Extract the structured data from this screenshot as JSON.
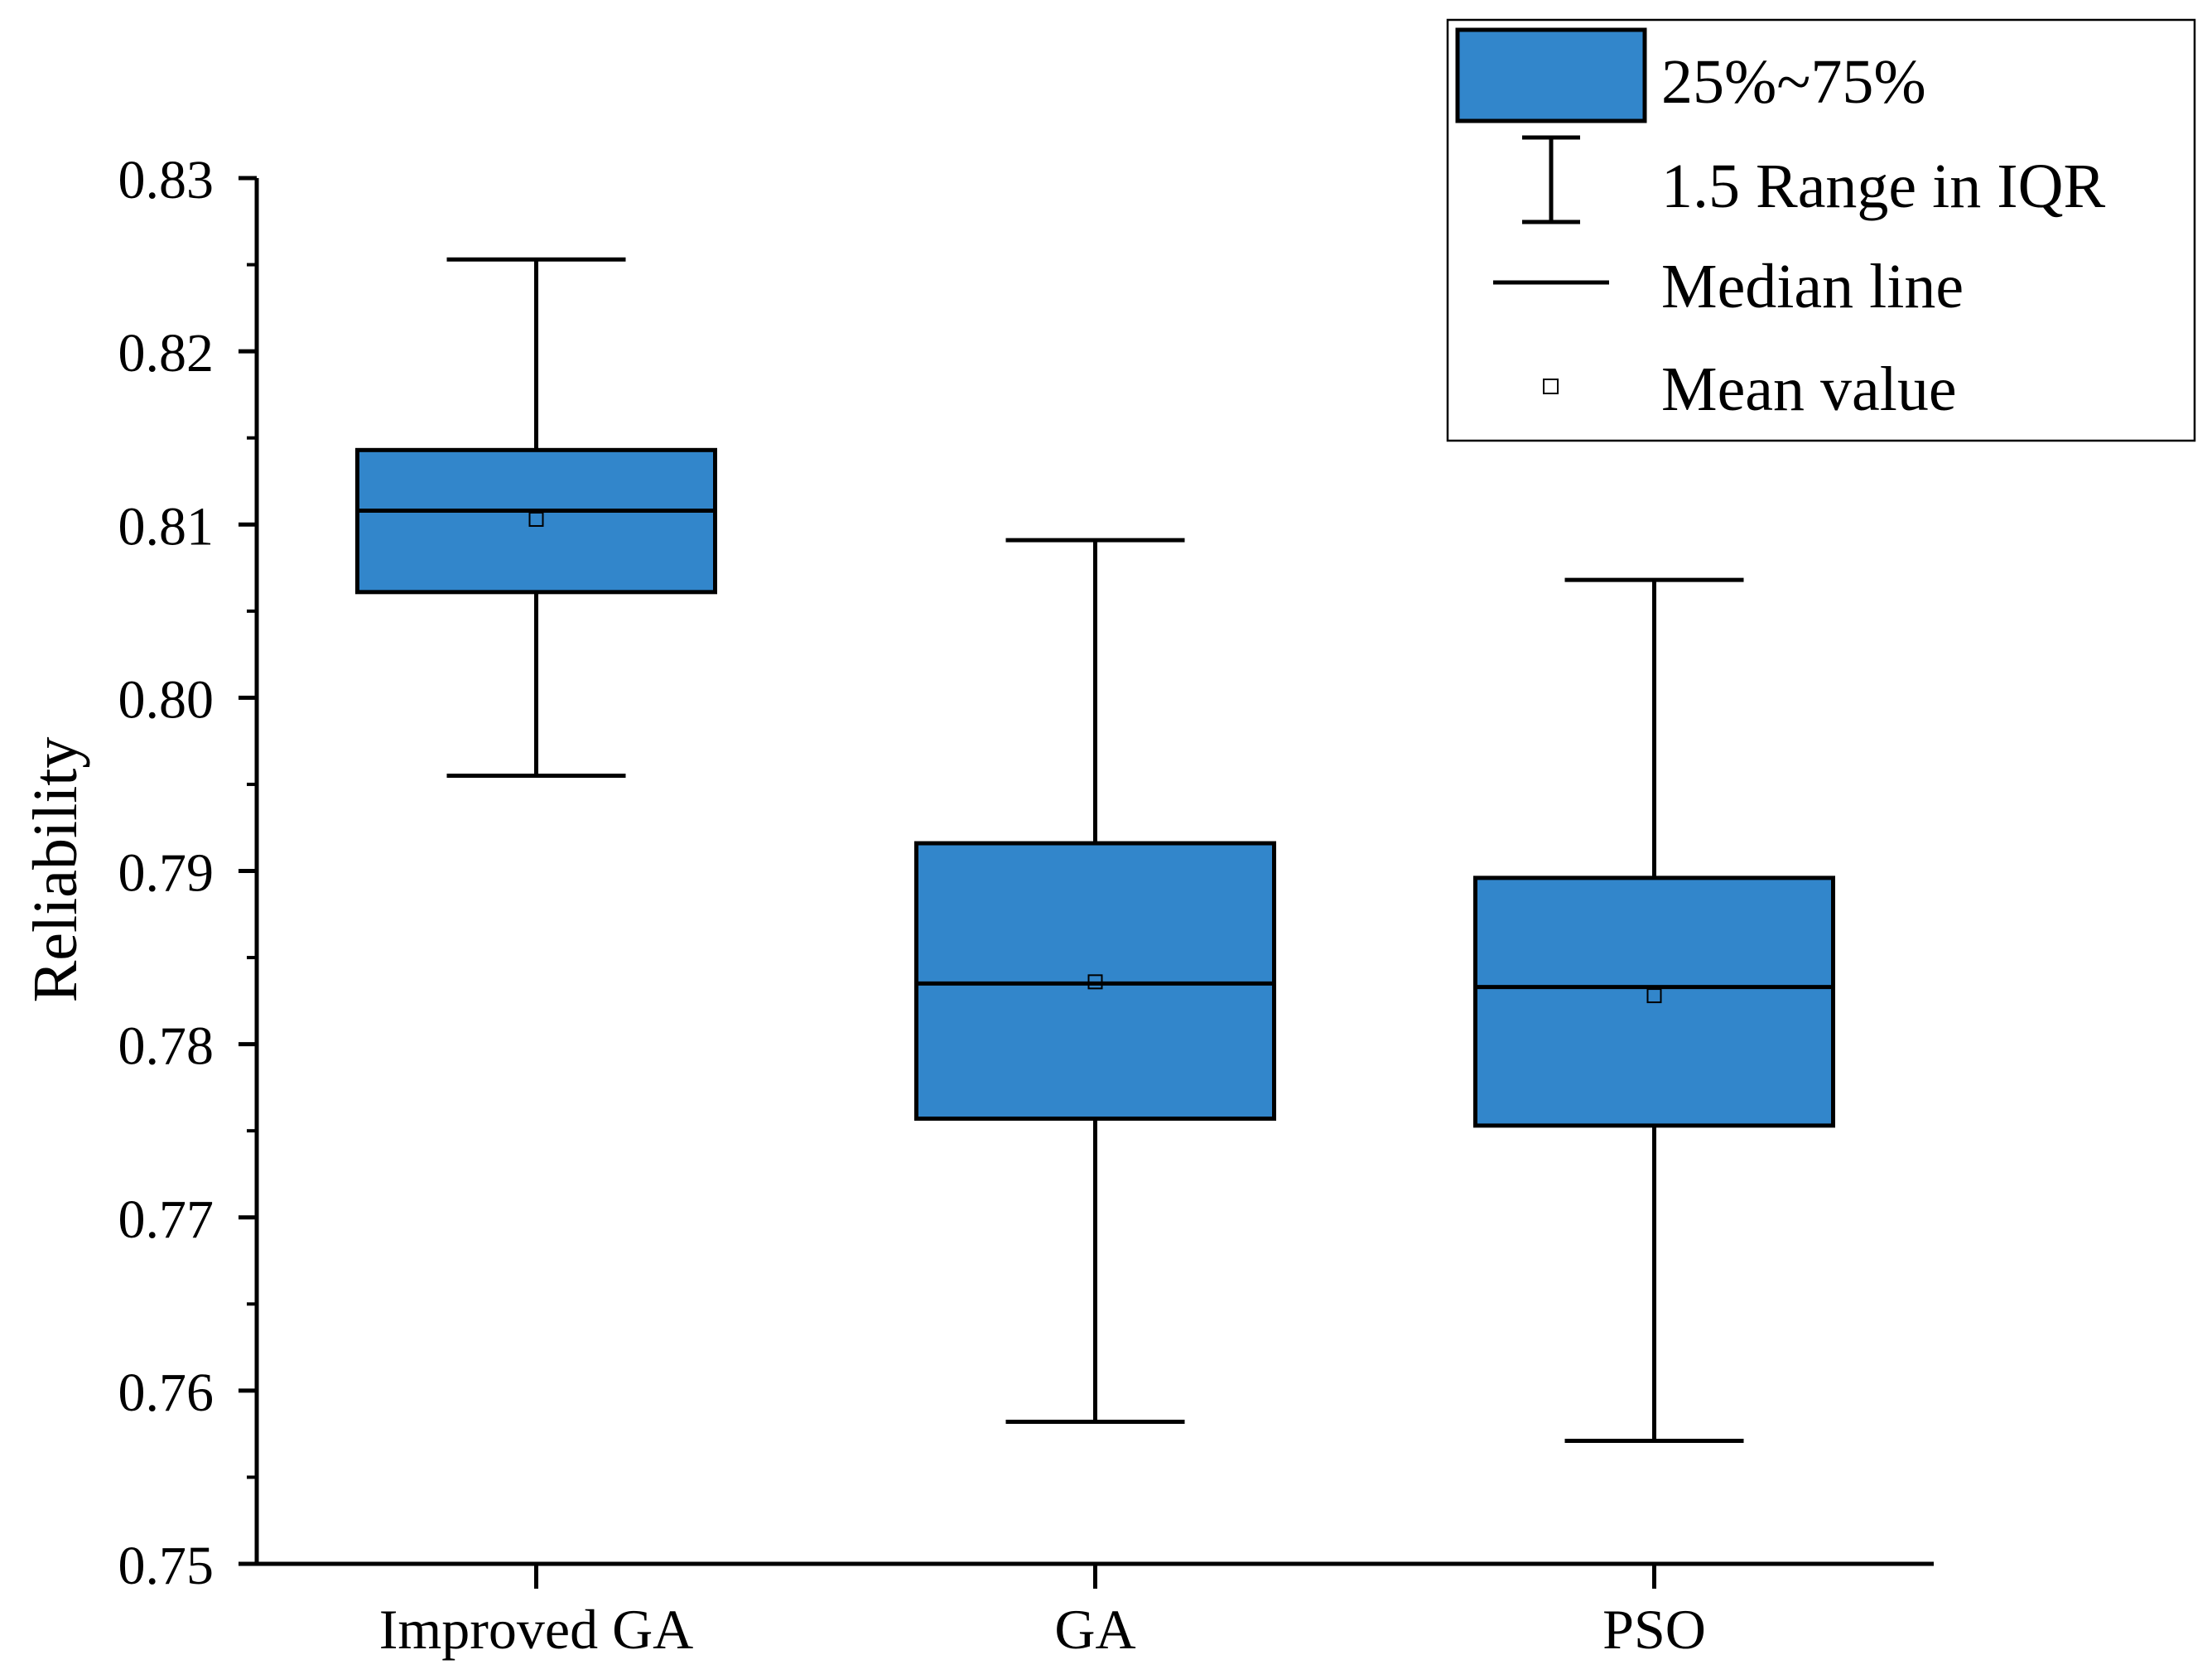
{
  "chart_data": {
    "type": "box",
    "title": "",
    "xlabel": "",
    "ylabel": "Reliability",
    "ylim": [
      0.75,
      0.83
    ],
    "yticks": [
      "0.75",
      "0.76",
      "0.77",
      "0.78",
      "0.79",
      "0.80",
      "0.81",
      "0.82",
      "0.83"
    ],
    "categories": [
      "Improved GA",
      "GA",
      "PSO"
    ],
    "boxes": [
      {
        "name": "Improved GA",
        "whisker_low": 0.7955,
        "q1": 0.8061,
        "median": 0.8108,
        "q3": 0.8143,
        "whisker_high": 0.8253,
        "mean": 0.8103
      },
      {
        "name": "GA",
        "whisker_low": 0.7582,
        "q1": 0.7757,
        "median": 0.7835,
        "q3": 0.7916,
        "whisker_high": 0.8091,
        "mean": 0.7836
      },
      {
        "name": "PSO",
        "whisker_low": 0.7571,
        "q1": 0.7753,
        "median": 0.7833,
        "q3": 0.7896,
        "whisker_high": 0.8068,
        "mean": 0.7828
      }
    ],
    "legend": {
      "position": "top-right",
      "entries": [
        "25%~75%",
        "1.5 Range in IQR",
        "Median line",
        "Mean value"
      ]
    },
    "colors": {
      "box_fill": "#3286CB",
      "stroke": "#000000",
      "mean_marker": "#ffffff"
    }
  }
}
